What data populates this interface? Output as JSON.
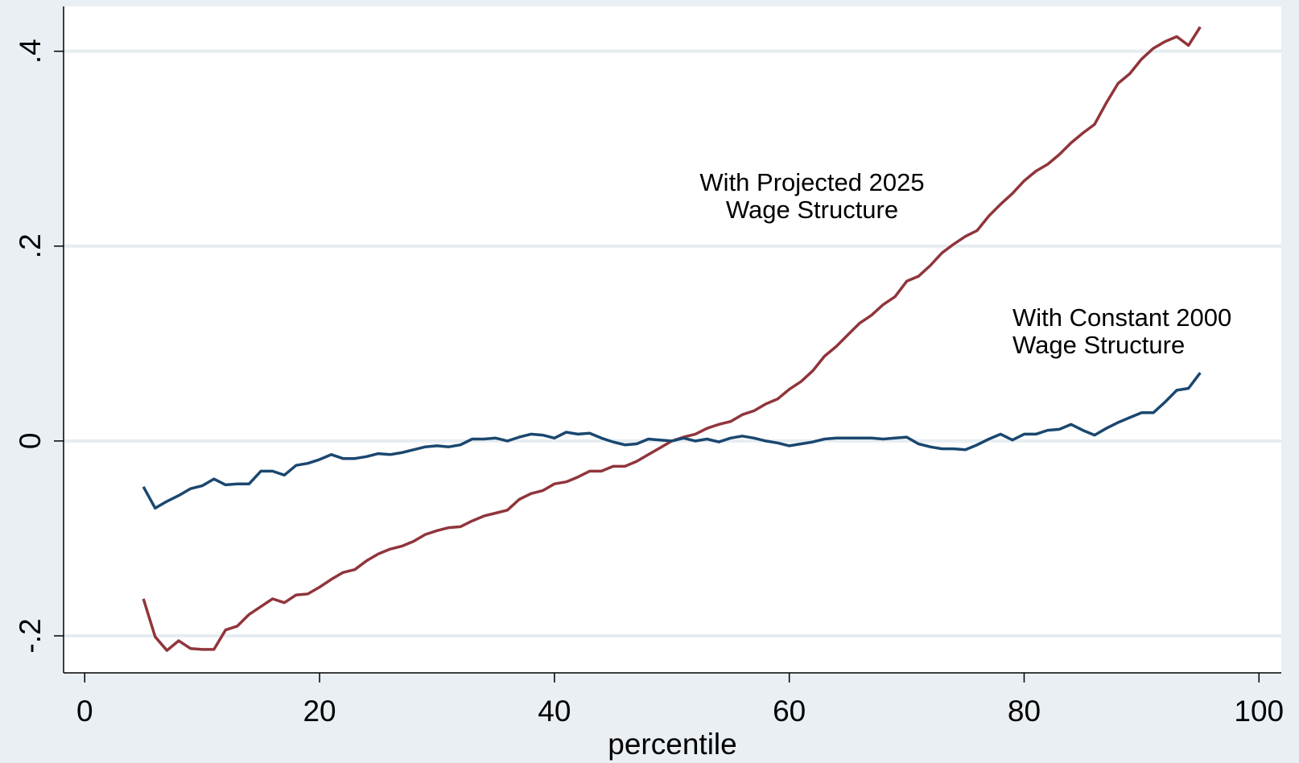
{
  "chart_data": {
    "type": "line",
    "x_label": "percentile",
    "x": [
      5,
      6,
      7,
      8,
      9,
      10,
      11,
      12,
      13,
      14,
      15,
      16,
      17,
      18,
      19,
      20,
      21,
      22,
      23,
      24,
      25,
      26,
      27,
      28,
      29,
      30,
      31,
      32,
      33,
      34,
      35,
      36,
      37,
      38,
      39,
      40,
      41,
      42,
      43,
      44,
      45,
      46,
      47,
      48,
      49,
      50,
      51,
      52,
      53,
      54,
      55,
      56,
      57,
      58,
      59,
      60,
      61,
      62,
      63,
      64,
      65,
      66,
      67,
      68,
      69,
      70,
      71,
      72,
      73,
      74,
      75,
      76,
      77,
      78,
      79,
      80,
      81,
      82,
      83,
      84,
      85,
      86,
      87,
      88,
      89,
      90,
      91,
      92,
      93,
      94,
      95
    ],
    "series": [
      {
        "color": "#90353b",
        "values": [
          -0.162,
          -0.201,
          -0.215,
          -0.205,
          -0.213,
          -0.214,
          -0.214,
          -0.194,
          -0.19,
          -0.178,
          -0.17,
          -0.162,
          -0.166,
          -0.158,
          -0.157,
          -0.15,
          -0.142,
          -0.135,
          -0.132,
          -0.123,
          -0.116,
          -0.111,
          -0.108,
          -0.103,
          -0.096,
          -0.092,
          -0.089,
          -0.088,
          -0.082,
          -0.077,
          -0.074,
          -0.071,
          -0.06,
          -0.054,
          -0.051,
          -0.044,
          -0.042,
          -0.037,
          -0.031,
          -0.031,
          -0.026,
          -0.026,
          -0.021,
          -0.014,
          -0.007,
          0,
          0.004,
          0.007,
          0.013,
          0.017,
          0.02,
          0.027,
          0.031,
          0.038,
          0.043,
          0.053,
          0.061,
          0.072,
          0.087,
          0.097,
          0.109,
          0.121,
          0.129,
          0.14,
          0.148,
          0.164,
          0.169,
          0.18,
          0.193,
          0.202,
          0.21,
          0.216,
          0.231,
          0.243,
          0.254,
          0.267,
          0.277,
          0.284,
          0.294,
          0.306,
          0.316,
          0.325,
          0.347,
          0.367,
          0.377,
          0.392,
          0.403,
          0.41,
          0.415,
          0.406,
          0.425
        ]
      },
      {
        "color": "#1a476f",
        "values": [
          -0.047,
          -0.069,
          -0.062,
          -0.056,
          -0.049,
          -0.046,
          -0.039,
          -0.045,
          -0.044,
          -0.044,
          -0.031,
          -0.031,
          -0.035,
          -0.025,
          -0.023,
          -0.019,
          -0.014,
          -0.018,
          -0.018,
          -0.016,
          -0.013,
          -0.014,
          -0.012,
          -0.009,
          -0.006,
          -0.005,
          -0.006,
          -0.004,
          0.002,
          0.002,
          0.003,
          0,
          0.004,
          0.007,
          0.006,
          0.003,
          0.009,
          0.007,
          0.008,
          0.003,
          -0.001,
          -0.004,
          -0.003,
          0.002,
          0.001,
          0,
          0.003,
          0,
          0.002,
          -0.001,
          0.003,
          0.005,
          0.003,
          0,
          -0.002,
          -0.005,
          -0.003,
          -0.001,
          0.002,
          0.003,
          0.003,
          0.003,
          0.003,
          0.002,
          0.003,
          0.004,
          -0.003,
          -0.006,
          -0.008,
          -0.008,
          -0.009,
          -0.004,
          0.002,
          0.007,
          0.001,
          0.007,
          0.007,
          0.011,
          0.012,
          0.017,
          0.011,
          0.006,
          0.013,
          0.019,
          0.024,
          0.029,
          0.029,
          0.04,
          0.052,
          0.054,
          0.07
        ]
      }
    ],
    "annotations": [
      [
        "With Projected 2025",
        "Wage Structure"
      ],
      [
        "With Constant 2000",
        "Wage Structure"
      ]
    ],
    "xlim": [
      -1.8,
      101.9
    ],
    "xticks": [
      0,
      20,
      40,
      60,
      80,
      100
    ],
    "ylim": [
      -0.238,
      0.446
    ],
    "yticks": [
      {
        "value": -0.2,
        "label": "-.2"
      },
      0,
      {
        "value": 0.2,
        "label": ".2"
      },
      {
        "value": 0.4,
        "label": ".4"
      }
    ],
    "grid": true
  }
}
